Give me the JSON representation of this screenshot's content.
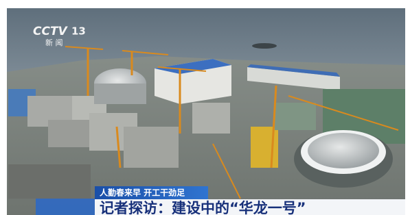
{
  "logo": {
    "channel": "CCTV",
    "number": "13",
    "subtitle": "新 闻"
  },
  "caption": {
    "tag": "人勤春来早 开工干劲足",
    "headline": "记者探访：建设中的“华龙一号”"
  }
}
